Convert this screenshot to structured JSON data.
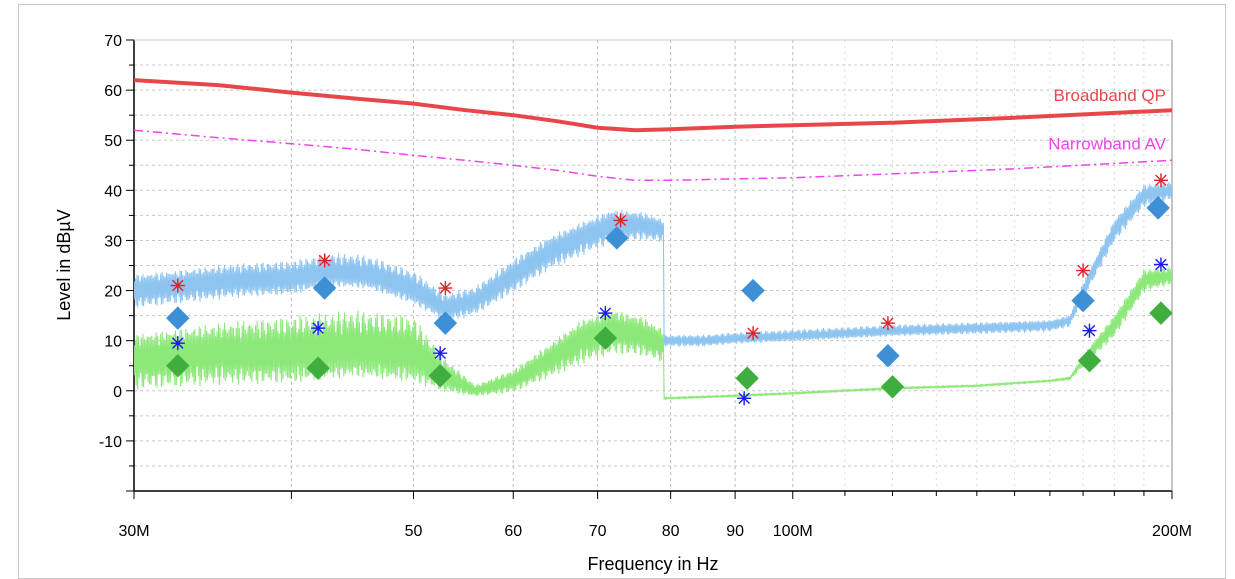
{
  "chart_data": {
    "type": "line",
    "xlabel": "Frequency in Hz",
    "ylabel": "Level in dBµV",
    "x_scale": "log",
    "xlim": [
      30,
      200
    ],
    "ylim": [
      -20,
      70
    ],
    "grid": true,
    "x_ticks": [
      {
        "value": 30,
        "label": "30M"
      },
      {
        "value": 40,
        "label": ""
      },
      {
        "value": 50,
        "label": "50"
      },
      {
        "value": 60,
        "label": "60"
      },
      {
        "value": 70,
        "label": "70"
      },
      {
        "value": 80,
        "label": "80"
      },
      {
        "value": 90,
        "label": "90"
      },
      {
        "value": 100,
        "label": "100M"
      },
      {
        "value": 200,
        "label": "200M"
      }
    ],
    "y_ticks": [
      {
        "value": 70,
        "label": "70"
      },
      {
        "value": 60,
        "label": "60"
      },
      {
        "value": 50,
        "label": "50"
      },
      {
        "value": 40,
        "label": "40"
      },
      {
        "value": 30,
        "label": "30"
      },
      {
        "value": 20,
        "label": "20"
      },
      {
        "value": 10,
        "label": "10"
      },
      {
        "value": 0,
        "label": "0"
      },
      {
        "value": -10,
        "label": "-10"
      }
    ],
    "limit_lines": [
      {
        "name": "Broadband QP",
        "color": "#e8474a",
        "style": "solid",
        "x": [
          30,
          35,
          40,
          45,
          50,
          55,
          60,
          65,
          70,
          75,
          80,
          90,
          100,
          120,
          150,
          200
        ],
        "y": [
          62,
          61,
          59.5,
          58.3,
          57.3,
          56,
          55,
          53.8,
          52.5,
          52,
          52.2,
          52.7,
          53,
          53.5,
          54.5,
          56
        ]
      },
      {
        "name": "Narrowband AV",
        "color": "#ee44ee",
        "style": "dash-dot",
        "x": [
          30,
          35,
          40,
          45,
          50,
          55,
          60,
          65,
          70,
          75,
          80,
          90,
          100,
          120,
          150,
          200
        ],
        "y": [
          52,
          50.5,
          49.3,
          48.2,
          47,
          46,
          45,
          44,
          42.8,
          42,
          42,
          42.3,
          42.5,
          43.3,
          44.3,
          46
        ]
      }
    ],
    "series": [
      {
        "name": "",
        "color": "#8ec4f0",
        "style": "noisy",
        "x": [
          30,
          33,
          36,
          40,
          43,
          46,
          50,
          53,
          56,
          60,
          64,
          68,
          72,
          76,
          79,
          79.01,
          85,
          90,
          100,
          110,
          120,
          140,
          160,
          166,
          170,
          180,
          190,
          200
        ],
        "y": [
          20,
          21,
          22,
          22.5,
          24,
          23.5,
          20.5,
          16.5,
          18,
          23,
          27.5,
          30.5,
          33,
          33,
          32,
          10,
          10,
          10.5,
          11,
          11.5,
          12,
          12.5,
          13,
          14,
          20,
          32,
          39,
          40
        ],
        "amp": [
          3,
          3,
          3,
          3,
          3,
          3,
          3,
          2.5,
          2.5,
          3,
          3,
          3,
          3,
          2.5,
          2,
          1,
          1,
          1,
          1,
          1,
          1,
          1,
          1,
          1,
          1.5,
          2,
          2,
          1.5
        ]
      },
      {
        "name": "",
        "color": "#8ce878",
        "style": "noisy",
        "x": [
          30,
          35,
          40,
          45,
          50,
          53,
          56,
          60,
          64,
          68,
          72,
          76,
          79,
          79.01,
          90,
          100,
          120,
          140,
          160,
          166,
          170,
          180,
          190,
          200
        ],
        "y": [
          6,
          7.5,
          8,
          9,
          8,
          3,
          0,
          2,
          6,
          10,
          12,
          11,
          9,
          -1.5,
          -1,
          -0.5,
          0.5,
          1,
          2,
          2.5,
          6,
          13,
          22,
          23
        ],
        "amp": [
          5,
          5.5,
          6,
          6,
          6,
          3,
          1,
          2,
          3,
          4,
          4,
          3.5,
          3,
          0.2,
          0.2,
          0.2,
          0.2,
          0.2,
          0.2,
          0.3,
          1,
          2,
          2,
          1.5
        ]
      }
    ],
    "markers": [
      {
        "name": "red-asterisk",
        "color": "#e0202a",
        "shape": "asterisk",
        "points": [
          [
            32.5,
            21
          ],
          [
            42.5,
            26
          ],
          [
            53,
            20.5
          ],
          [
            73,
            34
          ],
          [
            93,
            11.5
          ],
          [
            119,
            13.5
          ],
          [
            170,
            24
          ],
          [
            196,
            42
          ]
        ]
      },
      {
        "name": "blue-asterisk",
        "color": "#1a1aee",
        "shape": "asterisk",
        "points": [
          [
            32.5,
            9.5
          ],
          [
            42,
            12.5
          ],
          [
            52.5,
            7.5
          ],
          [
            71,
            15.5
          ],
          [
            91.5,
            -1.5
          ],
          [
            172,
            12
          ],
          [
            196,
            25.2
          ]
        ]
      },
      {
        "name": "blue-diamond",
        "color": "#3d8fd6",
        "shape": "diamond",
        "points": [
          [
            32.5,
            14.5
          ],
          [
            42.5,
            20.5
          ],
          [
            53,
            13.5
          ],
          [
            72.5,
            30.5
          ],
          [
            93,
            20
          ],
          [
            119,
            7
          ],
          [
            170,
            18
          ],
          [
            195,
            36.5
          ]
        ]
      },
      {
        "name": "green-diamond",
        "color": "#3fae3f",
        "shape": "diamond",
        "points": [
          [
            32.5,
            5
          ],
          [
            42,
            4.5
          ],
          [
            52.5,
            3
          ],
          [
            71,
            10.5
          ],
          [
            92,
            2.5
          ],
          [
            120,
            0.8
          ],
          [
            172,
            6
          ],
          [
            196,
            15.5
          ]
        ]
      }
    ]
  }
}
